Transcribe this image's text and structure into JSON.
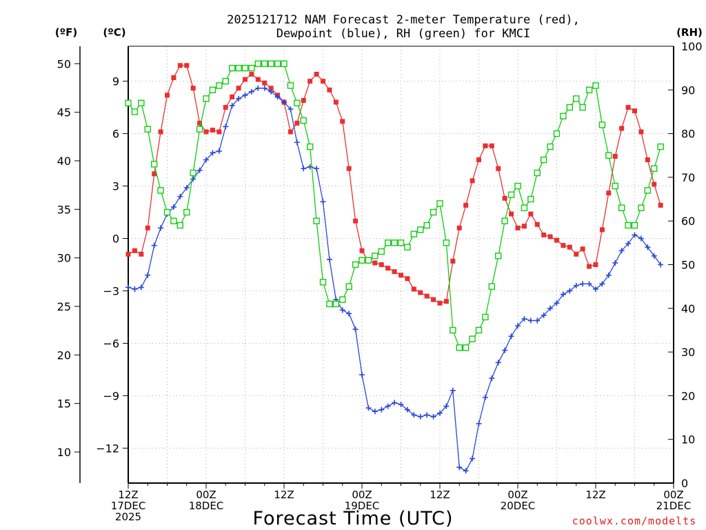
{
  "chart_data": {
    "type": "line",
    "title_line1": "2025121712 NAM Forecast 2-meter Temperature (red),",
    "title_line2": "Dewpoint (blue), RH (green) for KMCI",
    "xlabel": "Forecast Time (UTC)",
    "credit": "coolwx.com/modelts",
    "unit_f": "(ºF)",
    "unit_c": "(ºC)",
    "unit_rh": "(RH)",
    "xlim": [
      0,
      84
    ],
    "ylim_c": [
      -14.0,
      11.0
    ],
    "ylim_rh": [
      0,
      100
    ],
    "yticks_f": [
      "10",
      "15",
      "20",
      "25",
      "30",
      "35",
      "40",
      "45",
      "50"
    ],
    "yticks_c": [
      "−12",
      "−9",
      "−6",
      "−3",
      "0",
      "3",
      "6",
      "9"
    ],
    "yticks_rh": [
      "0",
      "10",
      "20",
      "30",
      "40",
      "50",
      "60",
      "70",
      "80",
      "90",
      "100"
    ],
    "xticks": [
      {
        "x": 0,
        "lines": [
          "12Z",
          "17DEC",
          "2025"
        ]
      },
      {
        "x": 12,
        "lines": [
          "00Z",
          "18DEC"
        ]
      },
      {
        "x": 24,
        "lines": [
          "12Z",
          ""
        ]
      },
      {
        "x": 36,
        "lines": [
          "00Z",
          "19DEC"
        ]
      },
      {
        "x": 48,
        "lines": [
          "12Z",
          ""
        ]
      },
      {
        "x": 60,
        "lines": [
          "00Z",
          "20DEC"
        ]
      },
      {
        "x": 72,
        "lines": [
          "12Z",
          ""
        ]
      },
      {
        "x": 84,
        "lines": [
          "00Z",
          "21DEC"
        ]
      }
    ],
    "series": [
      {
        "name": "Temperature",
        "axis": "c",
        "color": "#e83030",
        "marker": "filled-square",
        "values": [
          -0.9,
          -0.7,
          -0.9,
          0.6,
          3.7,
          6.1,
          8.2,
          9.2,
          9.9,
          9.9,
          8.6,
          6.6,
          6.1,
          6.2,
          6.1,
          7.5,
          8.1,
          8.6,
          9.1,
          9.4,
          9.1,
          8.9,
          8.6,
          8.2,
          7.8,
          6.1,
          6.6,
          7.9,
          9.0,
          9.4,
          9.0,
          8.5,
          7.8,
          6.7,
          4.0,
          1.0,
          -0.7,
          -1.3,
          -1.4,
          -1.5,
          -1.7,
          -1.9,
          -2.1,
          -2.3,
          -2.9,
          -3.1,
          -3.3,
          -3.5,
          -3.7,
          -3.6,
          -1.3,
          0.6,
          1.9,
          3.3,
          4.5,
          5.3,
          5.3,
          4.0,
          2.3,
          1.4,
          0.6,
          0.7,
          1.4,
          0.8,
          0.2,
          0.1,
          -0.1,
          -0.4,
          -0.5,
          -0.9,
          -0.6,
          -1.6,
          -1.5,
          0.5,
          2.6,
          4.7,
          6.3,
          7.5,
          7.3,
          6.1,
          4.5,
          3.1,
          1.9
        ]
      },
      {
        "name": "Dewpoint",
        "axis": "c",
        "color": "#2846d8",
        "marker": "plus",
        "values": [
          -2.8,
          -2.9,
          -2.8,
          -2.1,
          -0.4,
          0.6,
          1.4,
          1.8,
          2.4,
          2.9,
          3.4,
          3.9,
          4.5,
          4.9,
          5.0,
          6.4,
          7.6,
          8.0,
          8.2,
          8.4,
          8.6,
          8.6,
          8.4,
          8.1,
          7.8,
          7.4,
          5.5,
          4.0,
          4.1,
          4.0,
          2.1,
          -1.2,
          -3.5,
          -4.1,
          -4.3,
          -5.2,
          -7.8,
          -9.7,
          -9.9,
          -9.8,
          -9.6,
          -9.4,
          -9.5,
          -9.8,
          -10.1,
          -10.2,
          -10.1,
          -10.2,
          -10.0,
          -9.6,
          -8.7,
          -13.1,
          -13.3,
          -12.6,
          -10.6,
          -9.1,
          -8.0,
          -7.1,
          -6.4,
          -5.6,
          -5.0,
          -4.6,
          -4.7,
          -4.7,
          -4.4,
          -4.0,
          -3.7,
          -3.2,
          -3.0,
          -2.7,
          -2.6,
          -2.6,
          -2.9,
          -2.6,
          -2.1,
          -1.4,
          -0.7,
          -0.3,
          0.2,
          0.0,
          -0.5,
          -1.0,
          -1.5
        ]
      },
      {
        "name": "RH",
        "axis": "rh",
        "color": "#10cc10",
        "marker": "open-square",
        "values": [
          87,
          85,
          87,
          81,
          73,
          67,
          62,
          60,
          59,
          62,
          71,
          81,
          88,
          90,
          91,
          92,
          95,
          95,
          95,
          95,
          96,
          96,
          96,
          96,
          96,
          91,
          87,
          83,
          77,
          60,
          46,
          41,
          41,
          42,
          45,
          50,
          51,
          51,
          52,
          53,
          55,
          55,
          55,
          54,
          57,
          58,
          59,
          62,
          64,
          55,
          35,
          31,
          31,
          33,
          35,
          38,
          45,
          52,
          60,
          66,
          68,
          63,
          65,
          71,
          74,
          77,
          80,
          84,
          86,
          88,
          86,
          90,
          91,
          82,
          75,
          68,
          63,
          59,
          59,
          63,
          67,
          72,
          77
        ]
      }
    ]
  }
}
